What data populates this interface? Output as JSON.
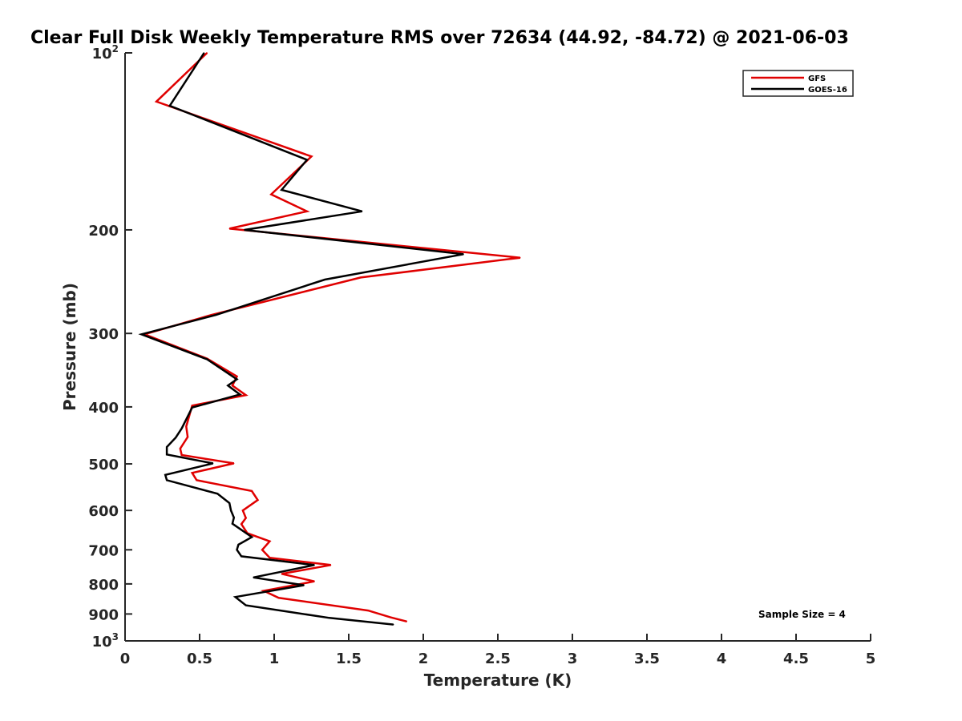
{
  "chart_data": {
    "type": "line",
    "title": "Clear Full Disk Weekly Temperature RMS over 72634 (44.92, -84.72) @ 2021-06-03",
    "xlabel": "Temperature (K)",
    "ylabel": "Pressure (mb)",
    "xlim": [
      0,
      5
    ],
    "ylim": [
      100,
      1000
    ],
    "yscale": "log",
    "y_reversed": true,
    "grid": false,
    "legend_position": "top-right",
    "xticks": [
      {
        "value": 0,
        "label": "0"
      },
      {
        "value": 0.5,
        "label": "0.5"
      },
      {
        "value": 1,
        "label": "1"
      },
      {
        "value": 1.5,
        "label": "1.5"
      },
      {
        "value": 2,
        "label": "2"
      },
      {
        "value": 2.5,
        "label": "2.5"
      },
      {
        "value": 3,
        "label": "3"
      },
      {
        "value": 3.5,
        "label": "3.5"
      },
      {
        "value": 4,
        "label": "4"
      },
      {
        "value": 4.5,
        "label": "4.5"
      },
      {
        "value": 5,
        "label": "5"
      }
    ],
    "yticks": [
      {
        "value": 100,
        "base": "10",
        "exp": "2"
      },
      {
        "value": 200,
        "label": "200"
      },
      {
        "value": 300,
        "label": "300"
      },
      {
        "value": 400,
        "label": "400"
      },
      {
        "value": 500,
        "label": "500"
      },
      {
        "value": 600,
        "label": "600"
      },
      {
        "value": 700,
        "label": "700"
      },
      {
        "value": 800,
        "label": "800"
      },
      {
        "value": 900,
        "label": "900"
      },
      {
        "value": 1000,
        "base": "10",
        "exp": "3"
      }
    ],
    "annotation": "Sample Size = 4",
    "series": [
      {
        "name": "GFS",
        "color": "#e00000",
        "points": [
          [
            0.55,
            100
          ],
          [
            0.21,
            121
          ],
          [
            1.25,
            150
          ],
          [
            0.98,
            174
          ],
          [
            1.22,
            186
          ],
          [
            0.7,
            199
          ],
          [
            2.65,
            223
          ],
          [
            1.58,
            241
          ],
          [
            0.58,
            279
          ],
          [
            0.13,
            301
          ],
          [
            0.55,
            331
          ],
          [
            0.75,
            355
          ],
          [
            0.72,
            368
          ],
          [
            0.81,
            382
          ],
          [
            0.45,
            398
          ],
          [
            0.41,
            432
          ],
          [
            0.42,
            450
          ],
          [
            0.37,
            471
          ],
          [
            0.38,
            483
          ],
          [
            0.73,
            499
          ],
          [
            0.45,
            518
          ],
          [
            0.48,
            533
          ],
          [
            0.85,
            556
          ],
          [
            0.89,
            576
          ],
          [
            0.79,
            600
          ],
          [
            0.81,
            618
          ],
          [
            0.78,
            633
          ],
          [
            0.82,
            656
          ],
          [
            0.97,
            677
          ],
          [
            0.92,
            700
          ],
          [
            0.97,
            722
          ],
          [
            1.38,
            743
          ],
          [
            1.05,
            769
          ],
          [
            1.27,
            792
          ],
          [
            0.93,
            822
          ],
          [
            1.03,
            845
          ],
          [
            1.63,
            888
          ],
          [
            1.78,
            912
          ],
          [
            1.89,
            927
          ]
        ]
      },
      {
        "name": "GOES-16",
        "color": "#000000",
        "points": [
          [
            0.53,
            100
          ],
          [
            0.3,
            123
          ],
          [
            1.22,
            152
          ],
          [
            1.05,
            171
          ],
          [
            1.59,
            186
          ],
          [
            0.8,
            200
          ],
          [
            2.27,
            220
          ],
          [
            1.34,
            243
          ],
          [
            0.61,
            279
          ],
          [
            0.11,
            301
          ],
          [
            0.55,
            332
          ],
          [
            0.75,
            359
          ],
          [
            0.69,
            368
          ],
          [
            0.77,
            381
          ],
          [
            0.45,
            401
          ],
          [
            0.38,
            435
          ],
          [
            0.34,
            451
          ],
          [
            0.28,
            468
          ],
          [
            0.28,
            482
          ],
          [
            0.59,
            499
          ],
          [
            0.27,
            522
          ],
          [
            0.28,
            533
          ],
          [
            0.62,
            562
          ],
          [
            0.7,
            583
          ],
          [
            0.71,
            600
          ],
          [
            0.73,
            617
          ],
          [
            0.72,
            632
          ],
          [
            0.85,
            666
          ],
          [
            0.76,
            686
          ],
          [
            0.75,
            700
          ],
          [
            0.78,
            718
          ],
          [
            1.27,
            743
          ],
          [
            0.86,
            780
          ],
          [
            1.2,
            804
          ],
          [
            0.74,
            842
          ],
          [
            0.81,
            870
          ],
          [
            1.37,
            914
          ],
          [
            1.8,
            938
          ]
        ]
      }
    ]
  }
}
